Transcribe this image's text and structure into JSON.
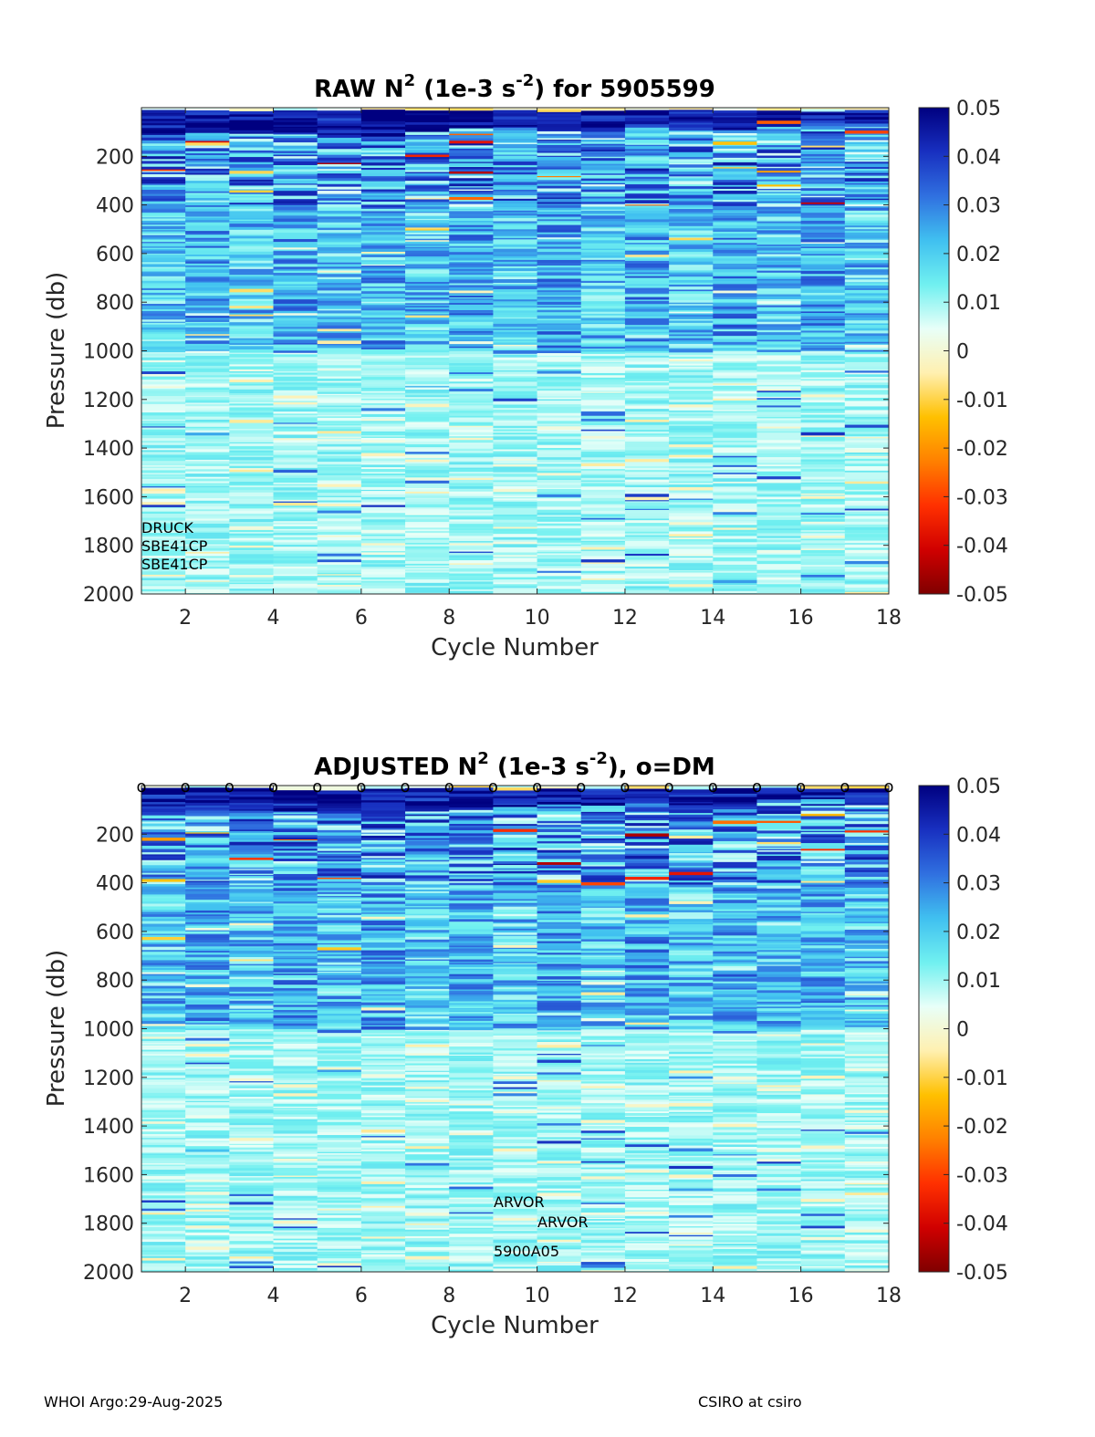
{
  "footer": {
    "left": "WHOI Argo:29-Aug-2025",
    "right": "CSIRO at csiro"
  },
  "colors": {
    "stops": [
      "#800000",
      "#d00000",
      "#ff3000",
      "#ff8000",
      "#ffc000",
      "#fff0b0",
      "#e8fff8",
      "#70f0f0",
      "#40c0f0",
      "#3070e0",
      "#1830c0",
      "#000080"
    ]
  },
  "chart_data": [
    {
      "type": "heatmap",
      "title_pre": "RAW N",
      "title_sup1": "2",
      "title_mid": " (1e-3 s",
      "title_sup2": "-2",
      "title_post": ") for 5905599",
      "xlabel": "Cycle Number",
      "ylabel": "Pressure (db)",
      "xlim": [
        1,
        18
      ],
      "ylim": [
        0,
        2000
      ],
      "x_ticks": [
        "2",
        "4",
        "6",
        "8",
        "10",
        "12",
        "14",
        "16",
        "18"
      ],
      "y_ticks": [
        "200",
        "400",
        "600",
        "800",
        "1000",
        "1200",
        "1400",
        "1600",
        "1800",
        "2000"
      ],
      "colorbar_ticks": [
        "0.05",
        "0.04",
        "0.03",
        "0.02",
        "0.01",
        "0",
        "-0.01",
        "-0.02",
        "-0.03",
        "-0.04",
        "-0.05"
      ],
      "clim": [
        -0.05,
        0.05
      ],
      "cycles": [
        1,
        2,
        3,
        4,
        5,
        6,
        7,
        8,
        9,
        10,
        11,
        12,
        13,
        14,
        15,
        16,
        17
      ],
      "surface_dark_depth": [
        80,
        70,
        70,
        70,
        80,
        90,
        60,
        50,
        50,
        40,
        50,
        40,
        60,
        60,
        20,
        20,
        30
      ],
      "annotations": [
        "DRUCK",
        "SBE41CP",
        "SBE41CP"
      ],
      "dm_markers": []
    },
    {
      "type": "heatmap",
      "title_pre": "ADJUSTED N",
      "title_sup1": "2",
      "title_mid": " (1e-3 s",
      "title_sup2": "-2",
      "title_post": "), o=DM",
      "xlabel": "Cycle Number",
      "ylabel": "Pressure (db)",
      "xlim": [
        1,
        18
      ],
      "ylim": [
        0,
        2000
      ],
      "x_ticks": [
        "2",
        "4",
        "6",
        "8",
        "10",
        "12",
        "14",
        "16",
        "18"
      ],
      "y_ticks": [
        "200",
        "400",
        "600",
        "800",
        "1000",
        "1200",
        "1400",
        "1600",
        "1800",
        "2000"
      ],
      "colorbar_ticks": [
        "0.05",
        "0.04",
        "0.03",
        "0.02",
        "0.01",
        "0",
        "-0.01",
        "-0.02",
        "-0.03",
        "-0.04",
        "-0.05"
      ],
      "clim": [
        -0.05,
        0.05
      ],
      "cycles": [
        1,
        2,
        3,
        4,
        5,
        6,
        7,
        8,
        9,
        10,
        11,
        12,
        13,
        14,
        15,
        16,
        17
      ],
      "surface_dark_depth": [
        80,
        70,
        70,
        70,
        80,
        90,
        60,
        50,
        50,
        40,
        50,
        40,
        60,
        60,
        20,
        20,
        30
      ],
      "annotations": [
        "ARVOR",
        "ARVOR",
        "5900A05"
      ],
      "dm_markers": [
        "o",
        "o",
        "o",
        "o",
        "o",
        "o",
        "o",
        "o",
        "o",
        "o",
        "o",
        "o",
        "o",
        "o",
        "o",
        "o",
        "o",
        "o"
      ],
      "dm_marker_cycles": [
        1,
        2,
        3,
        4,
        5,
        6,
        7,
        8,
        9,
        10,
        11,
        12,
        13,
        14,
        15,
        16,
        17,
        18
      ]
    }
  ]
}
